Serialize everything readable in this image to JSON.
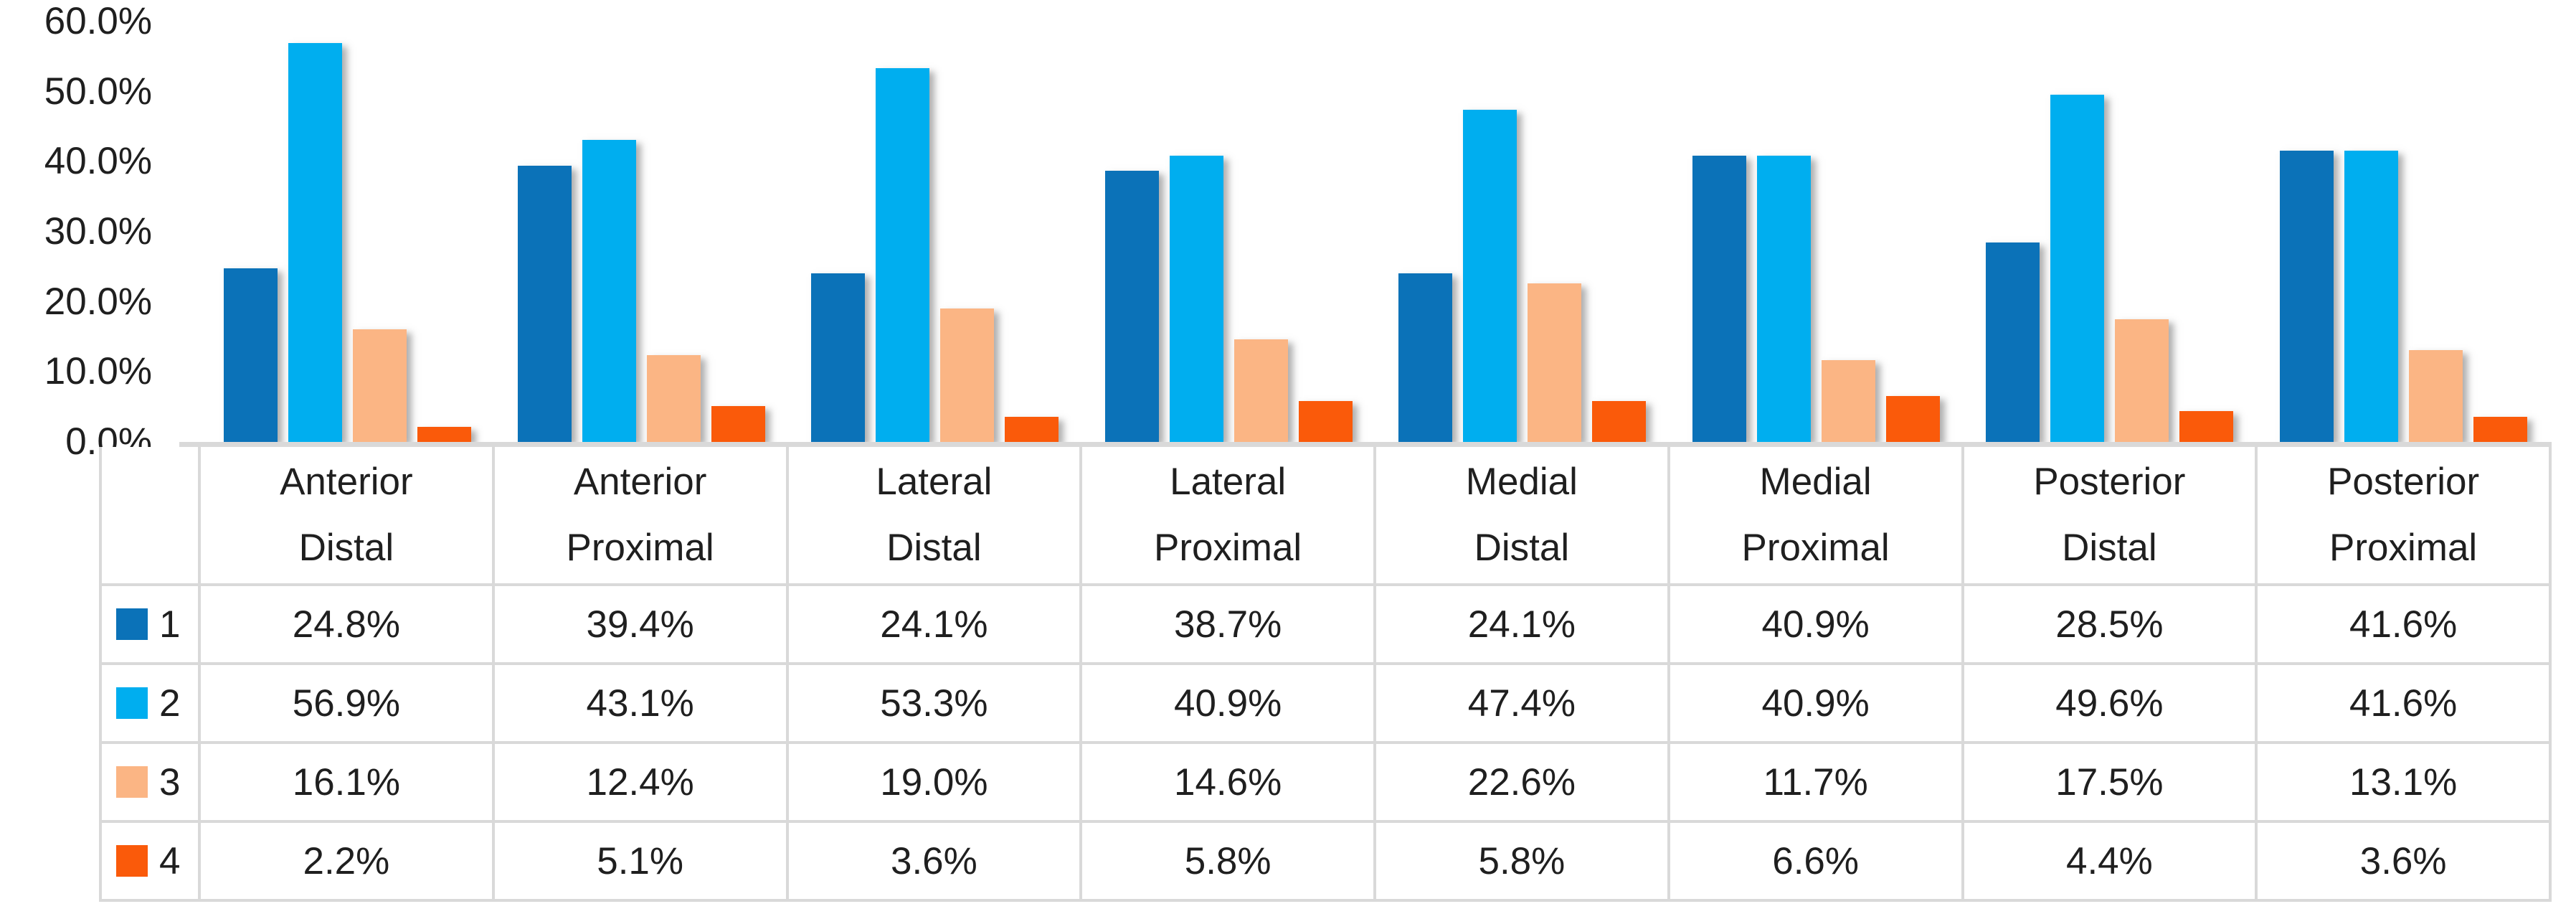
{
  "chart_data": {
    "type": "bar",
    "title": "",
    "categories": [
      "Anterior Distal",
      "Anterior Proximal",
      "Lateral Distal",
      "Lateral Proximal",
      "Medial Distal",
      "Medial Proximal",
      "Posterior Distal",
      "Posterior Proximal"
    ],
    "series": [
      {
        "name": "1",
        "color": "#0B72B8",
        "values": [
          24.8,
          39.4,
          24.1,
          38.7,
          24.1,
          40.9,
          28.5,
          41.6
        ]
      },
      {
        "name": "2",
        "color": "#00AEEF",
        "values": [
          56.9,
          43.1,
          53.3,
          40.9,
          47.4,
          40.9,
          49.6,
          41.6
        ]
      },
      {
        "name": "3",
        "color": "#FBB584",
        "values": [
          16.1,
          12.4,
          19.0,
          14.6,
          22.6,
          11.7,
          17.5,
          13.1
        ]
      },
      {
        "name": "4",
        "color": "#FA5A0A",
        "values": [
          2.2,
          5.1,
          3.6,
          5.8,
          5.8,
          6.6,
          4.4,
          3.6
        ]
      }
    ],
    "y_axis": {
      "tick_labels": [
        "60.0%",
        "50.0%",
        "40.0%",
        "30.0%",
        "20.0%",
        "10.0%",
        "0.0%"
      ],
      "min": 0,
      "max": 60,
      "step": 10
    },
    "value_suffix": "%",
    "value_decimals": 1,
    "grid": false,
    "legend_position": "table-left",
    "data_table": true,
    "axis_line_color": "#D9D9D9",
    "table_line_color": "#D9D9D9",
    "text_color": "#1F1F1F",
    "background_color": "#FFFFFF"
  }
}
